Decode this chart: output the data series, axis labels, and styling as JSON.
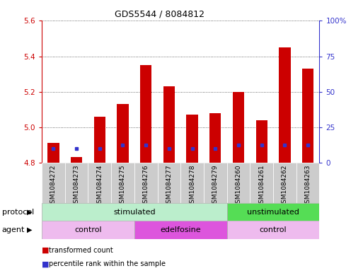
{
  "title": "GDS5544 / 8084812",
  "samples": [
    "GSM1084272",
    "GSM1084273",
    "GSM1084274",
    "GSM1084275",
    "GSM1084276",
    "GSM1084277",
    "GSM1084278",
    "GSM1084279",
    "GSM1084260",
    "GSM1084261",
    "GSM1084262",
    "GSM1084263"
  ],
  "bar_bottom": 4.8,
  "bar_tops": [
    4.91,
    4.83,
    5.06,
    5.13,
    5.35,
    5.23,
    5.07,
    5.08,
    5.2,
    5.04,
    5.45,
    5.33
  ],
  "percentile_values": [
    4.88,
    4.88,
    4.88,
    4.9,
    4.9,
    4.88,
    4.88,
    4.88,
    4.9,
    4.9,
    4.9,
    4.9
  ],
  "ylim_left": [
    4.8,
    5.6
  ],
  "ylim_right": [
    0,
    100
  ],
  "yticks_left": [
    4.8,
    5.0,
    5.2,
    5.4,
    5.6
  ],
  "yticks_right": [
    0,
    25,
    50,
    75,
    100
  ],
  "ytick_labels_right": [
    "0",
    "25",
    "50",
    "75",
    "100%"
  ],
  "bar_color": "#cc0000",
  "blue_color": "#3333cc",
  "bar_width": 0.5,
  "legend_red_label": "transformed count",
  "legend_blue_label": "percentile rank within the sample",
  "protocol_text": "protocol",
  "agent_text": "agent",
  "tick_color_left": "#cc0000",
  "tick_color_right": "#3333cc",
  "background_color": "#ffffff",
  "stim_color": "#bbeecc",
  "unstim_color": "#55dd55",
  "ctrl_color": "#eebbee",
  "edel_color": "#dd55dd",
  "label_bg_color": "#cccccc",
  "grid_linestyle": ":",
  "grid_color": "#444444"
}
